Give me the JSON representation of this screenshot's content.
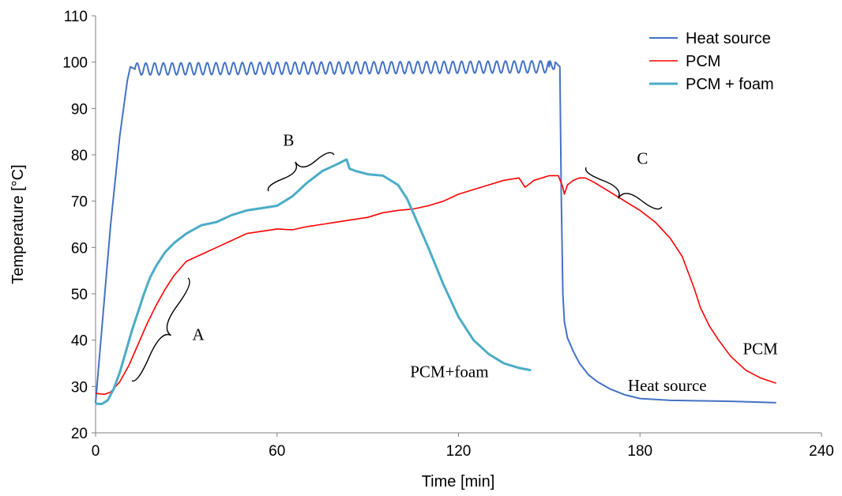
{
  "chart_data": {
    "type": "line",
    "xlabel": "Time  [min]",
    "ylabel": "Temperature [°C]",
    "xlim": [
      0,
      240
    ],
    "ylim": [
      20,
      110
    ],
    "xticks": [
      0,
      60,
      120,
      180,
      240
    ],
    "yticks": [
      20,
      30,
      40,
      50,
      60,
      70,
      80,
      90,
      100,
      110
    ],
    "grid": false,
    "legend_position": "top-right",
    "series": [
      {
        "name": "Heat source",
        "color": "#4472C4",
        "x": [
          0,
          2,
          5,
          8,
          10.5,
          11.5,
          13,
          150,
          152,
          153.5,
          154,
          154.5,
          155,
          156,
          158,
          160,
          163,
          166,
          170,
          175,
          180,
          190,
          200,
          210,
          220,
          225
        ],
        "y": [
          26.5,
          42,
          65,
          84,
          96,
          99,
          98.5,
          99,
          100,
          99,
          70,
          50,
          44,
          40.5,
          37.5,
          35,
          32.5,
          31,
          29.5,
          28.2,
          27.4,
          27,
          26.9,
          26.8,
          26.6,
          26.5
        ]
      },
      {
        "name": "PCM",
        "color": "#FF0000",
        "x": [
          0,
          3,
          5,
          8,
          11,
          14,
          17,
          20,
          23,
          26,
          30,
          35,
          40,
          45,
          50,
          55,
          60,
          65,
          70,
          75,
          80,
          85,
          90,
          95,
          100,
          105,
          110,
          115,
          120,
          125,
          130,
          135,
          140,
          142,
          145,
          150,
          153,
          154.5,
          155,
          156,
          158,
          160,
          162,
          165,
          170,
          175,
          180,
          185,
          190,
          194,
          198,
          200,
          203,
          206,
          210,
          215,
          220,
          225
        ],
        "y": [
          28.5,
          28.3,
          28.8,
          31,
          34.5,
          39,
          43.5,
          47.5,
          51,
          54,
          57,
          58.5,
          60,
          61.5,
          63,
          63.5,
          64,
          63.8,
          64.5,
          65,
          65.5,
          66,
          66.5,
          67.5,
          68,
          68.3,
          69,
          70,
          71.5,
          72.5,
          73.5,
          74.5,
          75,
          73,
          74.5,
          75.5,
          75.5,
          73,
          71.5,
          73.5,
          74.5,
          75,
          75,
          74,
          72,
          70,
          68,
          65.5,
          62,
          58,
          51,
          47,
          43,
          40,
          36.5,
          33.5,
          31.8,
          30.7
        ]
      },
      {
        "name": "PCM + foam",
        "color": "#4BACC6",
        "x": [
          0,
          2,
          4,
          6,
          8,
          10,
          12,
          14,
          16,
          18,
          20,
          23,
          26,
          30,
          35,
          40,
          45,
          50,
          55,
          60,
          65,
          70,
          75,
          80,
          83,
          84,
          86,
          90,
          95,
          100,
          103,
          106,
          110,
          115,
          120,
          125,
          130,
          135,
          140,
          144
        ],
        "y": [
          26.3,
          26.2,
          27,
          29.5,
          33,
          37.5,
          42,
          46,
          50,
          53.5,
          56,
          59,
          61,
          63,
          64.8,
          65.5,
          67,
          68,
          68.5,
          69,
          71,
          74,
          76.5,
          78,
          79,
          77,
          76.5,
          75.8,
          75.5,
          73.5,
          70.5,
          66,
          60,
          52,
          45,
          40,
          37,
          35,
          34,
          33.5
        ]
      }
    ],
    "annotations": [
      {
        "label": "A",
        "x": 32,
        "y": 40
      },
      {
        "label": "B",
        "x": 62,
        "y": 82
      },
      {
        "label": "C",
        "x": 179,
        "y": 78
      },
      {
        "label": "PCM+foam",
        "x": 104,
        "y": 32
      },
      {
        "label": "Heat source",
        "x": 176,
        "y": 29
      },
      {
        "label": "PCM",
        "x": 214,
        "y": 37
      }
    ]
  }
}
